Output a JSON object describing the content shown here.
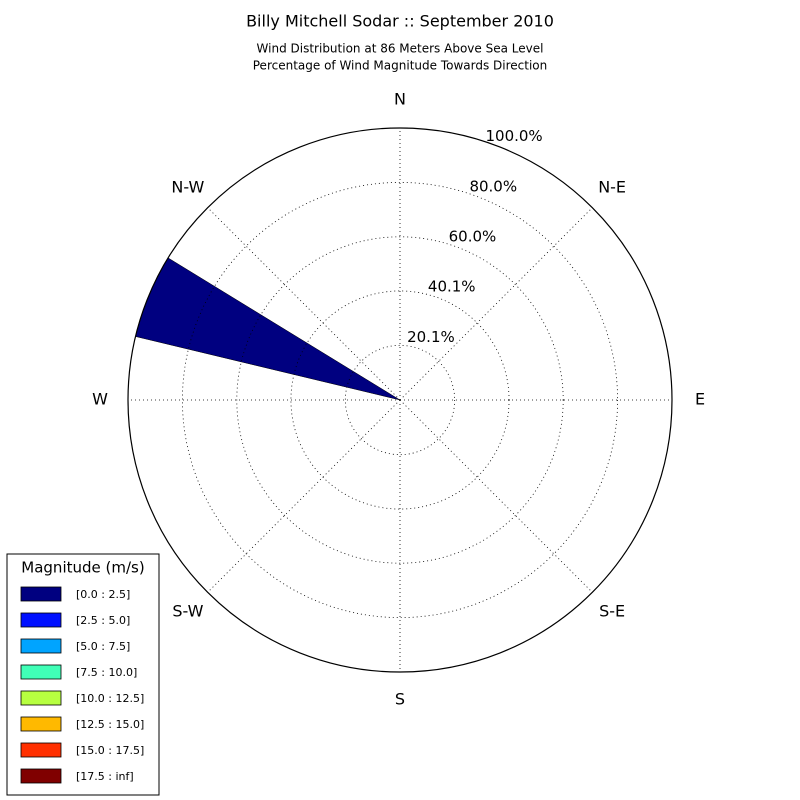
{
  "chart_data": {
    "type": "windrose",
    "title": "Billy Mitchell Sodar :: September 2010",
    "subtitle": [
      "Wind Distribution at 86 Meters Above Sea Level",
      "Percentage of Wind Magnitude Towards Direction"
    ],
    "directions": [
      "N",
      "N-E",
      "E",
      "S-E",
      "S",
      "S-W",
      "W",
      "N-W"
    ],
    "x": [
      292.5
    ],
    "rlim": [
      0,
      100
    ],
    "rticks": [
      {
        "value": 20.1,
        "label": "20.1%"
      },
      {
        "value": 40.1,
        "label": "40.1%"
      },
      {
        "value": 60.0,
        "label": "60.0%"
      },
      {
        "value": 80.0,
        "label": "80.0%"
      },
      {
        "value": 100.0,
        "label": "100.0%"
      }
    ],
    "grid": true,
    "legend_title": "Magnitude (m/s)",
    "legend": "lower left",
    "series": [
      {
        "name": "[0.0 : 2.5]",
        "color": "#000080",
        "values": [
          100
        ]
      },
      {
        "name": "[2.5 : 5.0]",
        "color": "#0010ff",
        "values": [
          0
        ]
      },
      {
        "name": "[5.0 : 7.5]",
        "color": "#00a4ff",
        "values": [
          0
        ]
      },
      {
        "name": "[7.5 : 10.0]",
        "color": "#40ffb7",
        "values": [
          0
        ]
      },
      {
        "name": "[10.0 : 12.5]",
        "color": "#b7ff40",
        "values": [
          0
        ]
      },
      {
        "name": "[12.5 : 15.0]",
        "color": "#ffb900",
        "values": [
          0
        ]
      },
      {
        "name": "[15.0 : 17.5]",
        "color": "#ff3000",
        "values": [
          0
        ]
      },
      {
        "name": "[17.5 : inf]",
        "color": "#800000",
        "values": [
          0
        ]
      }
    ]
  }
}
